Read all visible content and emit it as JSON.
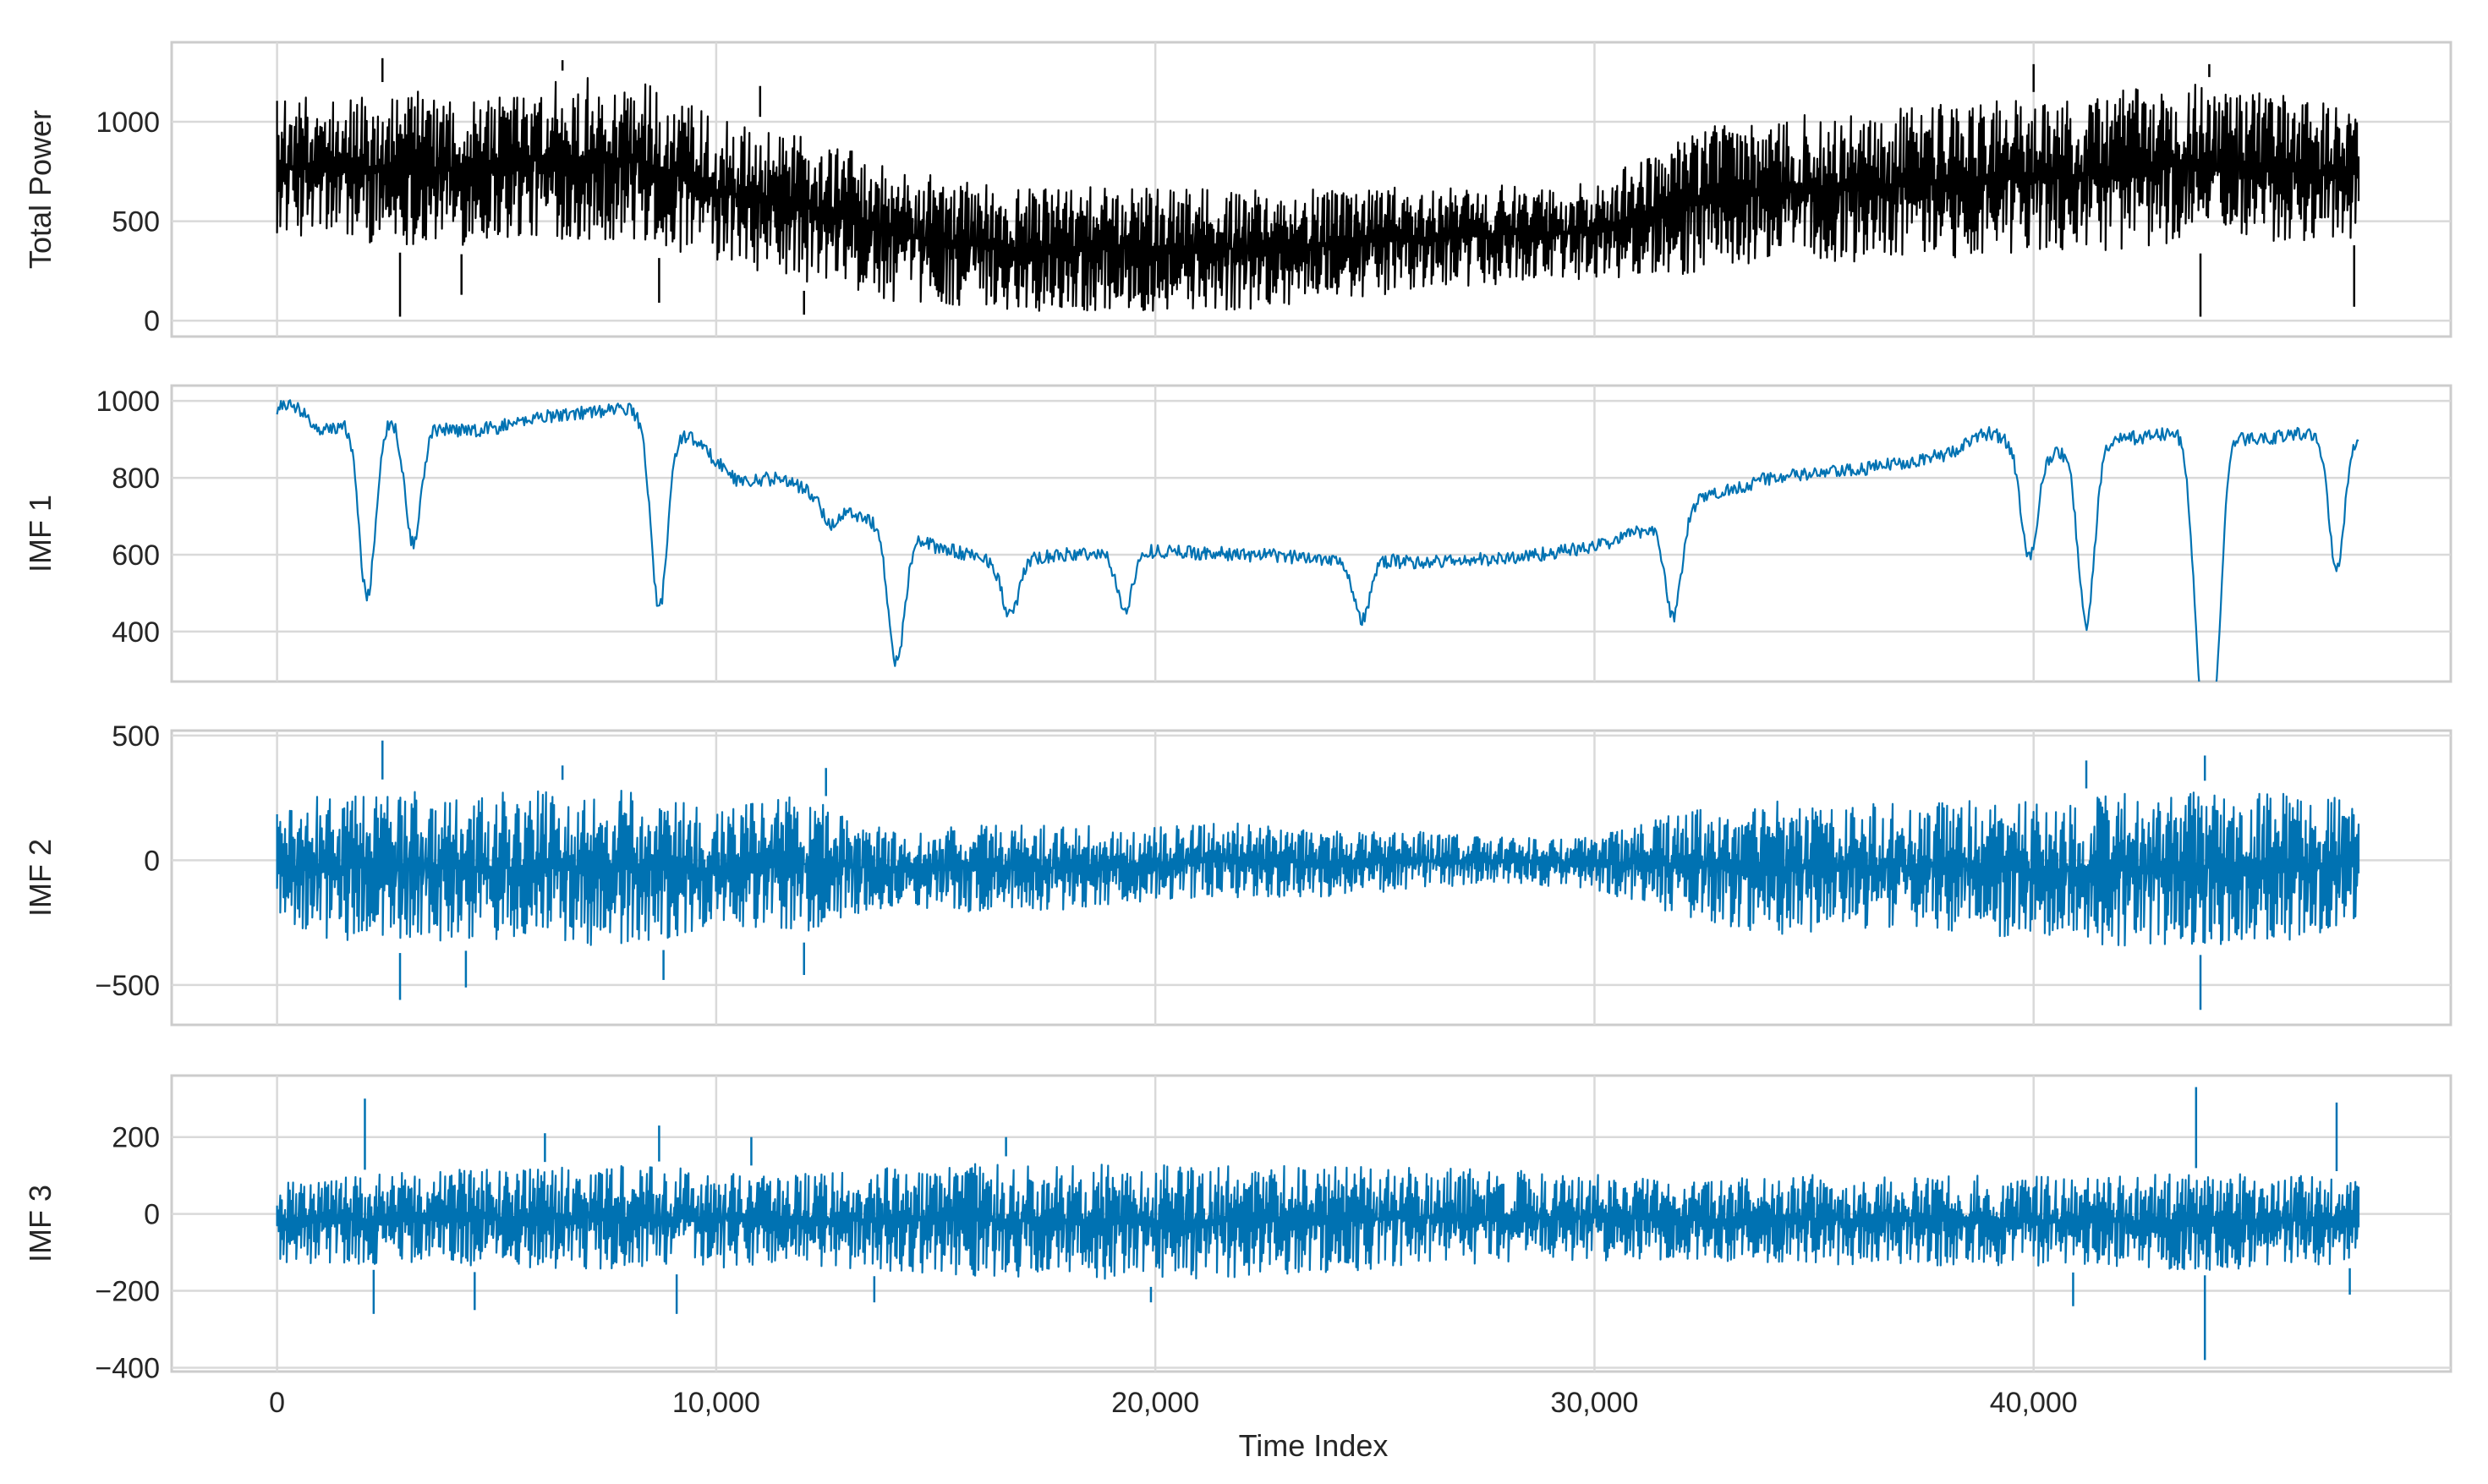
{
  "chart_data": {
    "type": "line",
    "layout": "4 stacked subplots sharing x axis",
    "style": "white background, light grey grid, grey frame",
    "xlabel": "Time Index",
    "xlim": [
      -2400,
      49500
    ],
    "x_ticks": [
      0,
      10000,
      20000,
      30000,
      40000
    ],
    "x_tick_labels": [
      "0",
      "10,000",
      "20,000",
      "30,000",
      "40,000"
    ],
    "n_samples": 47400,
    "grid": true,
    "legend": "none",
    "panels": [
      {
        "ylabel": "Total Power",
        "color": "#000000",
        "ylim": [
          -80,
          1400
        ],
        "y_ticks": [
          0,
          500,
          1000
        ],
        "y_tick_labels": [
          "0",
          "500",
          "1000"
        ],
        "kind": "oscillating envelope",
        "x": [
          0,
          2000,
          4000,
          6000,
          8000,
          9000,
          10000,
          12000,
          14000,
          17000,
          20000,
          22000,
          24000,
          26000,
          28000,
          30000,
          31500,
          33000,
          36000,
          39000,
          41000,
          43000,
          45000,
          47400
        ],
        "upper": [
          1150,
          1200,
          1200,
          1250,
          1280,
          1200,
          1050,
          1000,
          800,
          700,
          720,
          700,
          700,
          700,
          710,
          720,
          900,
          1050,
          1100,
          1150,
          1150,
          1250,
          1200,
          1100
        ],
        "lower": [
          400,
          350,
          330,
          370,
          350,
          300,
          250,
          150,
          60,
          15,
          10,
          20,
          70,
          120,
          160,
          180,
          190,
          210,
          250,
          280,
          300,
          330,
          350,
          380
        ],
        "spikes_down": [
          [
            2800,
            20
          ],
          [
            4200,
            130
          ],
          [
            8700,
            90
          ],
          [
            12000,
            30
          ],
          [
            14000,
            60
          ],
          [
            43800,
            20
          ],
          [
            47300,
            70
          ]
        ],
        "spikes_up": [
          [
            2400,
            1320
          ],
          [
            6500,
            1310
          ],
          [
            11000,
            1180
          ],
          [
            40000,
            1290
          ],
          [
            44000,
            1290
          ]
        ]
      },
      {
        "ylabel": "IMF 1",
        "color": "#0072B2",
        "ylim": [
          270,
          1040
        ],
        "y_ticks": [
          400,
          600,
          800,
          1000
        ],
        "y_tick_labels": [
          "400",
          "600",
          "800",
          "1000"
        ],
        "kind": "slow trend",
        "x": [
          0,
          300,
          1000,
          2000,
          3000,
          4000,
          5000,
          6000,
          7000,
          8000,
          8500,
          9500,
          10500,
          11500,
          12500,
          13500,
          15000,
          16500,
          18000,
          20000,
          22000,
          24000,
          26000,
          28000,
          30000,
          31500,
          32500,
          34000,
          36000,
          38000,
          39000,
          40000,
          41000,
          42000,
          43500,
          45000,
          46500,
          47400
        ],
        "values": [
          975,
          1000,
          920,
          960,
          950,
          920,
          930,
          960,
          970,
          980,
          950,
          900,
          790,
          800,
          740,
          690,
          620,
          580,
          600,
          610,
          600,
          590,
          580,
          590,
          620,
          680,
          750,
          800,
          820,
          860,
          920,
          860,
          870,
          900,
          920,
          900,
          920,
          920
        ],
        "noise": 18,
        "dips": [
          [
            2050,
            490
          ],
          [
            3100,
            630
          ],
          [
            8700,
            460
          ],
          [
            12600,
            680
          ],
          [
            14100,
            320
          ],
          [
            16700,
            440
          ],
          [
            19300,
            460
          ],
          [
            24700,
            430
          ],
          [
            31800,
            440
          ],
          [
            39900,
            590
          ],
          [
            41200,
            420
          ],
          [
            43800,
            380
          ],
          [
            44100,
            310
          ],
          [
            46900,
            570
          ]
        ]
      },
      {
        "ylabel": "IMF 2",
        "color": "#0072B2",
        "ylim": [
          -660,
          520
        ],
        "y_ticks": [
          -500,
          0,
          500
        ],
        "y_tick_labels": [
          "−500",
          "0",
          "500"
        ],
        "kind": "oscillating envelope",
        "x": [
          0,
          2000,
          4000,
          6000,
          8000,
          10000,
          12000,
          14000,
          16000,
          18000,
          20000,
          22000,
          24000,
          26000,
          28000,
          30000,
          32000,
          34000,
          36000,
          38000,
          40000,
          42000,
          44000,
          46000,
          47400
        ],
        "upper": [
          250,
          330,
          300,
          320,
          330,
          230,
          300,
          130,
          170,
          160,
          150,
          170,
          130,
          130,
          100,
          110,
          220,
          270,
          250,
          270,
          270,
          300,
          320,
          300,
          280
        ],
        "lower": [
          -300,
          -380,
          -360,
          -380,
          -400,
          -300,
          -330,
          -200,
          -230,
          -220,
          -180,
          -170,
          -160,
          -130,
          -110,
          -130,
          -250,
          -330,
          -300,
          -310,
          -350,
          -380,
          -380,
          -360,
          -320
        ],
        "spikes_down": [
          [
            2800,
            -560
          ],
          [
            4300,
            -510
          ],
          [
            8800,
            -480
          ],
          [
            12000,
            -460
          ],
          [
            43800,
            -600
          ]
        ],
        "spikes_up": [
          [
            2400,
            480
          ],
          [
            6500,
            380
          ],
          [
            12500,
            370
          ],
          [
            41200,
            400
          ],
          [
            43900,
            420
          ]
        ]
      },
      {
        "ylabel": "IMF 3",
        "color": "#0072B2",
        "ylim": [
          -410,
          360
        ],
        "y_ticks": [
          -400,
          -200,
          0,
          200
        ],
        "y_tick_labels": [
          "−400",
          "−200",
          "0",
          "200"
        ],
        "kind": "oscillating envelope",
        "x": [
          0,
          4000,
          8000,
          12000,
          16000,
          20000,
          24000,
          28000,
          32000,
          36000,
          40000,
          44000,
          47400
        ],
        "upper": [
          100,
          130,
          140,
          120,
          150,
          150,
          140,
          130,
          100,
          120,
          110,
          120,
          110
        ],
        "lower": [
          -140,
          -150,
          -160,
          -150,
          -180,
          -190,
          -170,
          -140,
          -130,
          -150,
          -150,
          -160,
          -140
        ],
        "spikes_down": [
          [
            2200,
            -260
          ],
          [
            4500,
            -250
          ],
          [
            9100,
            -260
          ],
          [
            13600,
            -230
          ],
          [
            19900,
            -230
          ],
          [
            40900,
            -240
          ],
          [
            43900,
            -380
          ],
          [
            47200,
            -210
          ]
        ],
        "spikes_up": [
          [
            2000,
            300
          ],
          [
            6100,
            210
          ],
          [
            8700,
            230
          ],
          [
            10800,
            200
          ],
          [
            16600,
            200
          ],
          [
            43700,
            330
          ],
          [
            46900,
            290
          ]
        ]
      }
    ]
  }
}
